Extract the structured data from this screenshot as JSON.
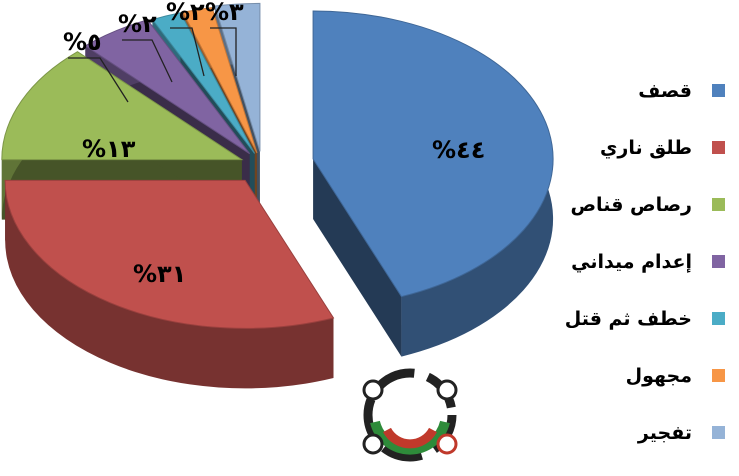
{
  "chart_data": {
    "type": "pie",
    "title": "",
    "series": [
      {
        "name": "قصف",
        "value": 44,
        "label": "%٤٤",
        "color": "#4f81bd"
      },
      {
        "name": "طلق ناري",
        "value": 31,
        "label": "%٣١",
        "color": "#c0504d"
      },
      {
        "name": "رصاص قناص",
        "value": 13,
        "label": "%١٣",
        "color": "#9bbb59"
      },
      {
        "name": "إعدام ميداني",
        "value": 5,
        "label": "%٥",
        "color": "#8064a2"
      },
      {
        "name": "خطف ثم قتل",
        "value": 2,
        "label": "%٢",
        "color": "#4bacc6"
      },
      {
        "name": "مجهول",
        "value": 2,
        "label": "%٢",
        "color": "#f79646"
      },
      {
        "name": "تفجير",
        "value": 3,
        "label": "%٣",
        "color": "#95b3d7"
      }
    ],
    "legend_position": "right",
    "style": "3d-exploded"
  }
}
